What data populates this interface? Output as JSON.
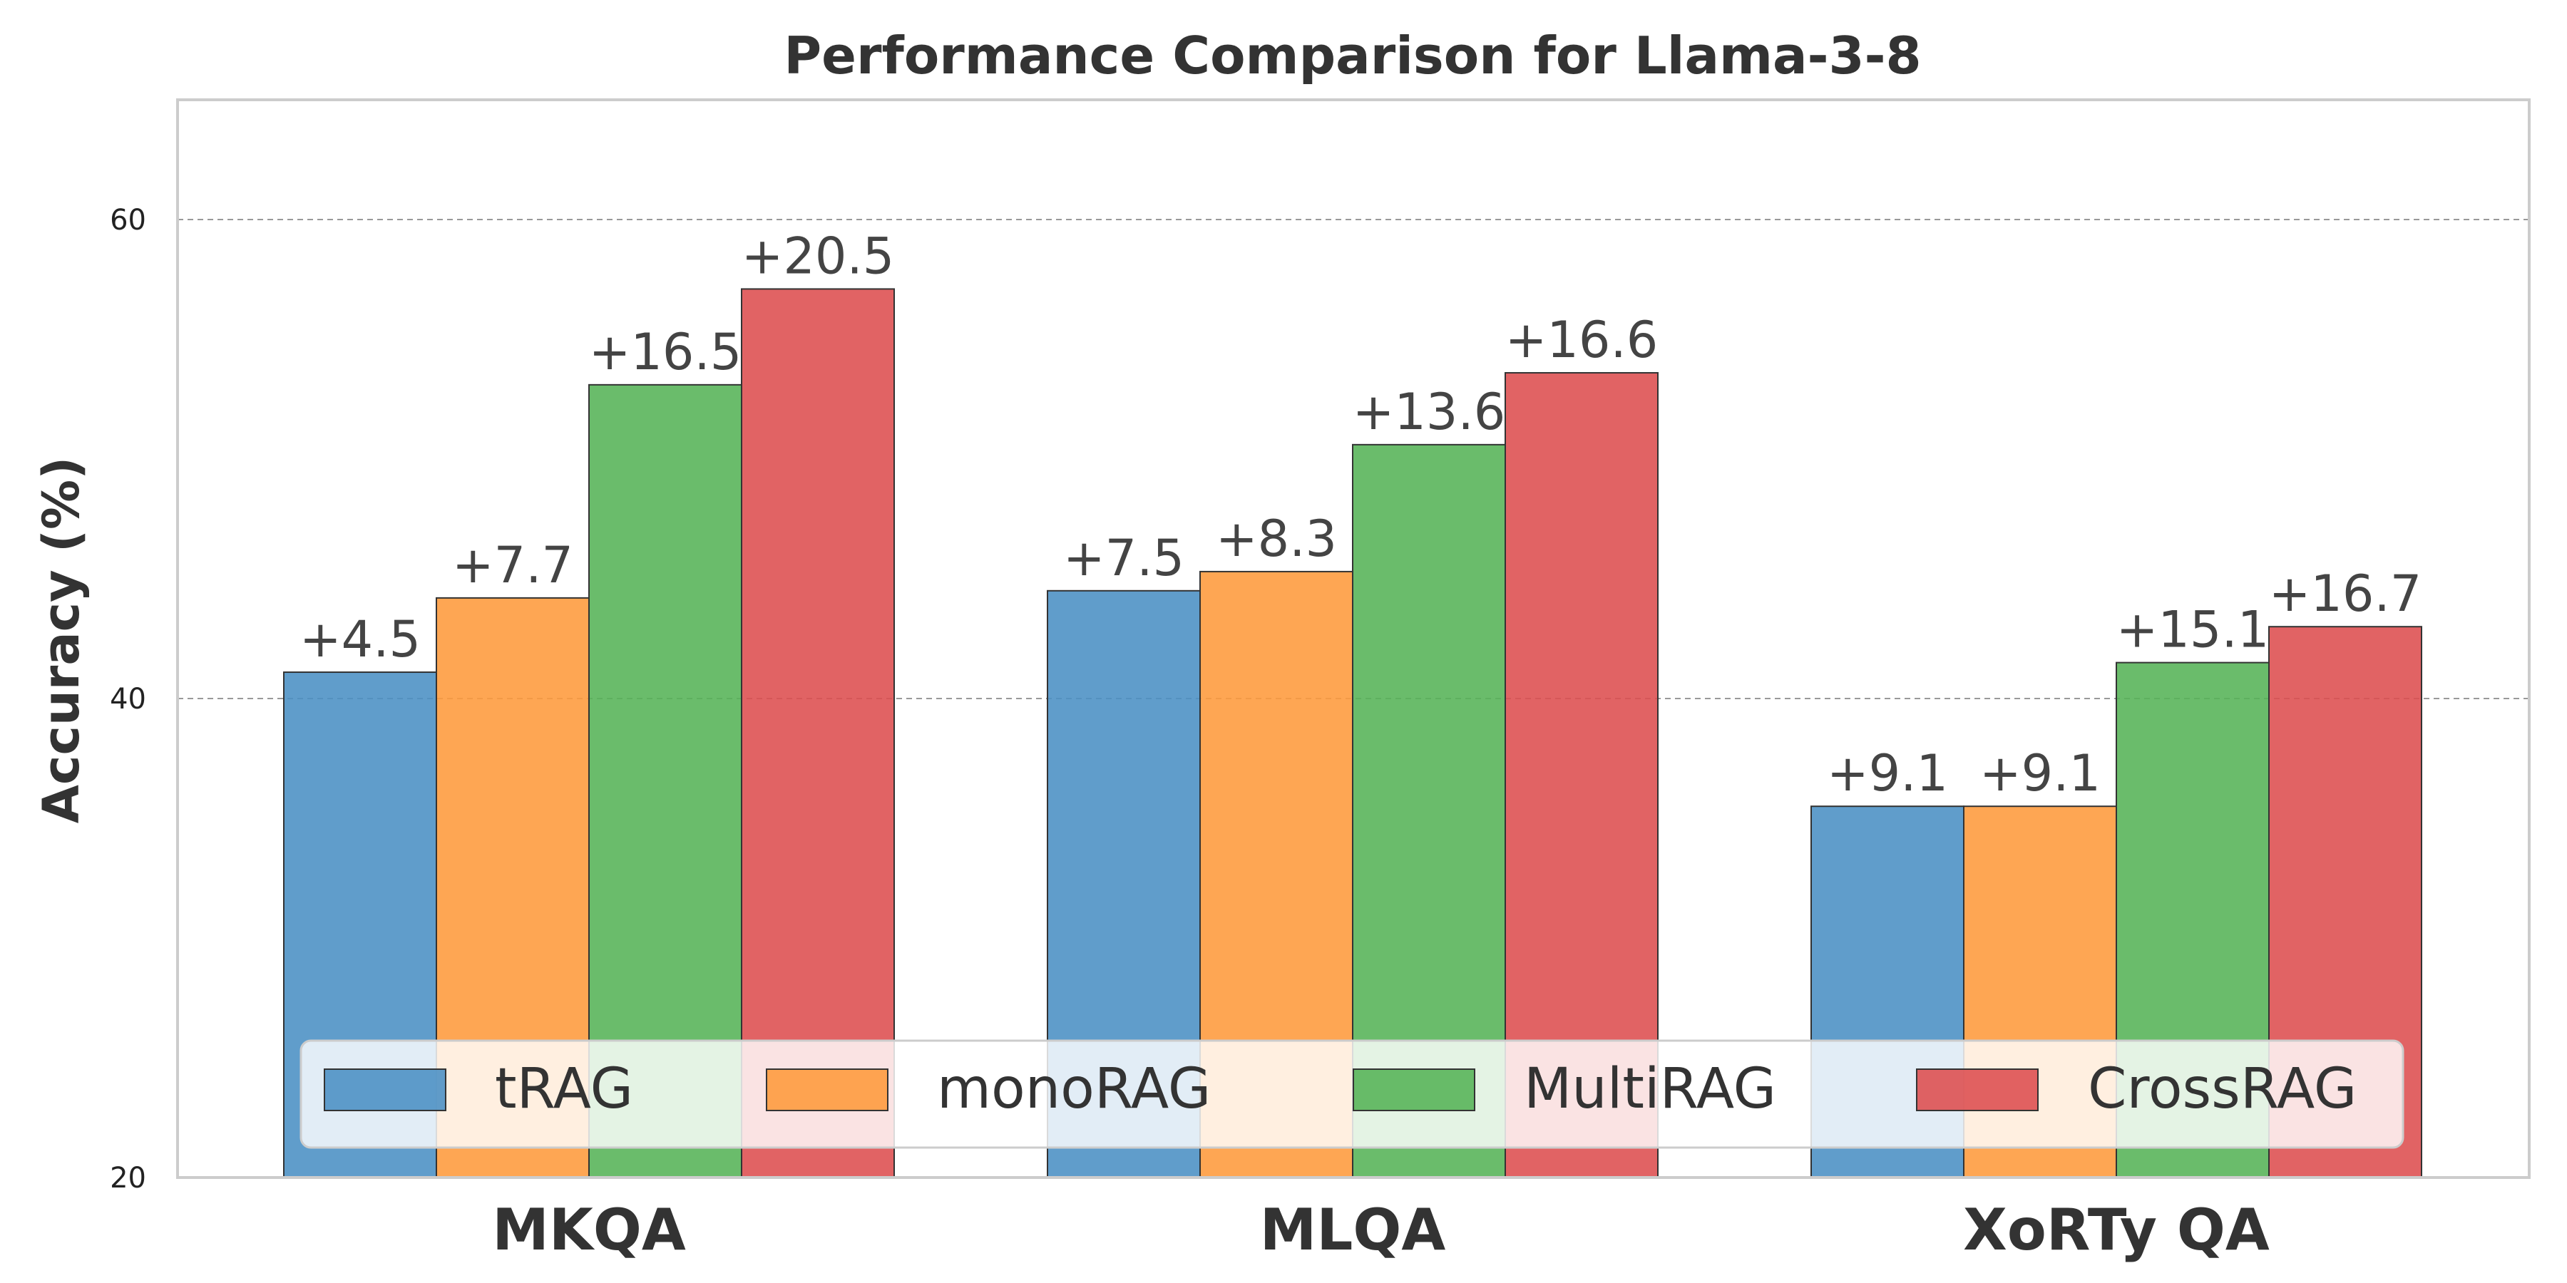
{
  "chart_data": {
    "type": "bar",
    "title": "Performance Comparison for Llama-3-8",
    "xlabel": "",
    "ylabel": "Accuracy (%)",
    "ylim": [
      20,
      65
    ],
    "yticks": [
      20,
      40,
      60
    ],
    "grid": true,
    "legend_position": "bottom-center",
    "categories": [
      "MKQA",
      "MLQA",
      "XoRTy QA"
    ],
    "series": [
      {
        "name": "tRAG",
        "color": "#4a8fc4",
        "values": [
          41.1,
          44.5,
          35.5
        ],
        "labels": [
          "+4.5",
          "+7.5",
          "+9.1"
        ]
      },
      {
        "name": "monoRAG",
        "color": "#fe9a3b",
        "values": [
          44.2,
          45.3,
          35.5
        ],
        "labels": [
          "+7.7",
          "+8.3",
          "+9.1"
        ]
      },
      {
        "name": "MultiRAG",
        "color": "#55b356",
        "values": [
          53.1,
          50.6,
          41.5
        ],
        "labels": [
          "+16.5",
          "+13.6",
          "+15.1"
        ]
      },
      {
        "name": "CrossRAG",
        "color": "#dd4d4f",
        "values": [
          57.1,
          53.6,
          43.0
        ],
        "labels": [
          "+20.5",
          "+16.6",
          "+16.7"
        ]
      }
    ]
  }
}
